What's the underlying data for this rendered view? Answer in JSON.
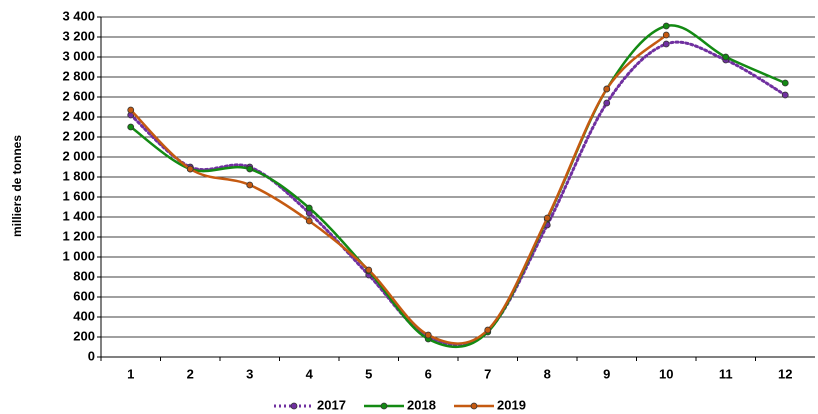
{
  "chart_data": {
    "type": "line",
    "y_label": "milliers de tonnes",
    "categories": [
      "1",
      "2",
      "3",
      "4",
      "5",
      "6",
      "7",
      "8",
      "9",
      "10",
      "11",
      "12"
    ],
    "series": [
      {
        "name": "2017",
        "color": "#7030a0",
        "line_style": "dotted",
        "values": [
          2420,
          1900,
          1900,
          1440,
          820,
          200,
          260,
          1320,
          2540,
          3130,
          2970,
          2620
        ]
      },
      {
        "name": "2018",
        "color": "#138a13",
        "line_style": "solid",
        "values": [
          2300,
          1880,
          1880,
          1490,
          860,
          180,
          250,
          1380,
          2680,
          3310,
          3000,
          2740
        ]
      },
      {
        "name": "2019",
        "color": "#c55a11",
        "line_style": "solid",
        "values": [
          2470,
          1880,
          1720,
          1360,
          870,
          220,
          270,
          1390,
          2680,
          3220,
          null,
          null
        ]
      }
    ],
    "ylim": [
      0,
      3400
    ],
    "yticks": [
      0,
      200,
      400,
      600,
      800,
      {
        "value": 1000,
        "label": "1 000"
      },
      {
        "value": 1200,
        "label": "1 200"
      },
      {
        "value": 1400,
        "label": "1 400"
      },
      {
        "value": 1600,
        "label": "1 600"
      },
      {
        "value": 1800,
        "label": "1 800"
      },
      {
        "value": 2000,
        "label": "2 000"
      },
      {
        "value": 2200,
        "label": "2 200"
      },
      {
        "value": 2400,
        "label": "2 400"
      },
      {
        "value": 2600,
        "label": "2 600"
      },
      {
        "value": 2800,
        "label": "2 800"
      },
      {
        "value": 3000,
        "label": "3 000"
      },
      {
        "value": 3200,
        "label": "3 200"
      },
      {
        "value": 3400,
        "label": "3 400"
      }
    ],
    "grid": true,
    "smooth": true,
    "legend": "bottom"
  }
}
